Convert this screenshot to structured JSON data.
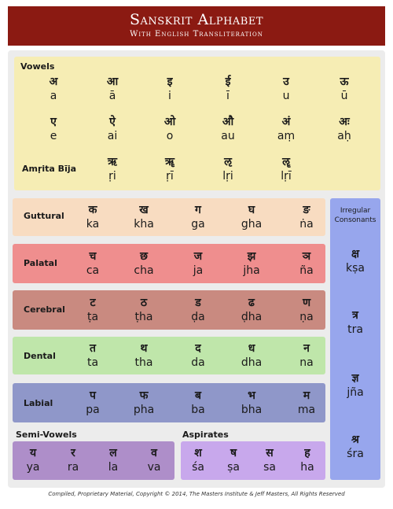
{
  "header": {
    "title": "Sanskrit Alphabet",
    "subtitle": "With English Transliteration"
  },
  "vowels": {
    "label": "Vowels",
    "row1": [
      [
        "अ",
        "a"
      ],
      [
        "आ",
        "ā"
      ],
      [
        "इ",
        "i"
      ],
      [
        "ई",
        "ī"
      ],
      [
        "उ",
        "u"
      ],
      [
        "ऊ",
        "ū"
      ]
    ],
    "row2": [
      [
        "ए",
        "e"
      ],
      [
        "ऐ",
        "ai"
      ],
      [
        "ओ",
        "o"
      ],
      [
        "औ",
        "au"
      ],
      [
        "अं",
        "aṃ"
      ],
      [
        "अः",
        "aḥ"
      ]
    ],
    "amrita_label": "Amṛita Bīja",
    "amrita": [
      [
        "ऋ",
        "ṛi"
      ],
      [
        "ॠ",
        "ṛī"
      ],
      [
        "ऌ",
        "lṛi"
      ],
      [
        "ॡ",
        "lṛī"
      ]
    ]
  },
  "consonants": [
    {
      "label": "Guttural",
      "letters": [
        [
          "क",
          "ka"
        ],
        [
          "ख",
          "kha"
        ],
        [
          "ग",
          "ga"
        ],
        [
          "घ",
          "gha"
        ],
        [
          "ङ",
          "ṅa"
        ]
      ]
    },
    {
      "label": "Palatal",
      "letters": [
        [
          "च",
          "ca"
        ],
        [
          "छ",
          "cha"
        ],
        [
          "ज",
          "ja"
        ],
        [
          "झ",
          "jha"
        ],
        [
          "ञ",
          "ña"
        ]
      ]
    },
    {
      "label": "Cerebral",
      "letters": [
        [
          "ट",
          "ṭa"
        ],
        [
          "ठ",
          "ṭha"
        ],
        [
          "ड",
          "ḍa"
        ],
        [
          "ढ",
          "ḍha"
        ],
        [
          "ण",
          "ṇa"
        ]
      ]
    },
    {
      "label": "Dental",
      "letters": [
        [
          "त",
          "ta"
        ],
        [
          "थ",
          "tha"
        ],
        [
          "द",
          "da"
        ],
        [
          "ध",
          "dha"
        ],
        [
          "न",
          "na"
        ]
      ]
    },
    {
      "label": "Labial",
      "letters": [
        [
          "प",
          "pa"
        ],
        [
          "फ",
          "pha"
        ],
        [
          "ब",
          "ba"
        ],
        [
          "भ",
          "bha"
        ],
        [
          "म",
          "ma"
        ]
      ]
    }
  ],
  "irregular": {
    "label": "Irregular Consonants",
    "letters": [
      [
        "क्ष",
        "kṣa"
      ],
      [
        "त्र",
        "tra"
      ],
      [
        "ज्ञ",
        "jña"
      ],
      [
        "श्र",
        "śra"
      ]
    ]
  },
  "semi_vowels": {
    "label": "Semi-Vowels",
    "letters": [
      [
        "य",
        "ya"
      ],
      [
        "र",
        "ra"
      ],
      [
        "ल",
        "la"
      ],
      [
        "व",
        "va"
      ]
    ]
  },
  "aspirates": {
    "label": "Aspirates",
    "letters": [
      [
        "श",
        "śa"
      ],
      [
        "ष",
        "ṣa"
      ],
      [
        "स",
        "sa"
      ],
      [
        "ह",
        "ha"
      ]
    ]
  },
  "footer": "Compiled, Proprietary Material, Copyright © 2014, The Masters Institute & Jeff Masters, All Rights Reserved"
}
